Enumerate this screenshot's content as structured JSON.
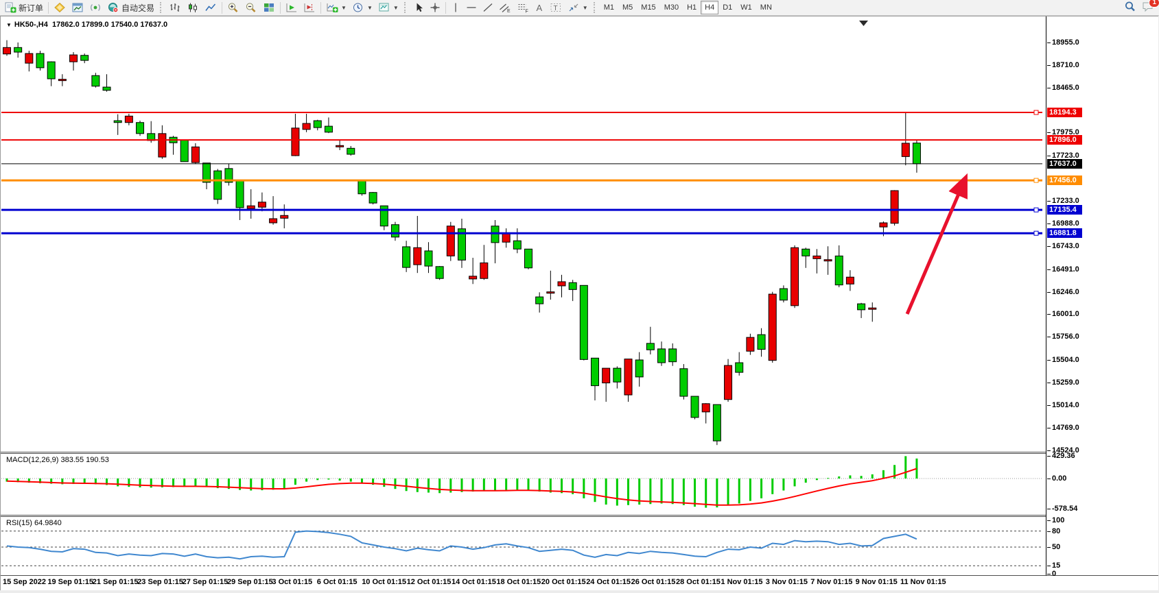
{
  "toolbar": {
    "new_order_label": "新订单",
    "autotrading_label": "自动交易",
    "timeframes": [
      "M1",
      "M5",
      "M15",
      "M30",
      "H1",
      "H4",
      "D1",
      "W1",
      "MN"
    ],
    "active_timeframe": "H4",
    "chat_badge": "1"
  },
  "chart_data": {
    "type": "candlestick",
    "symbol": "HK50-",
    "timeframe": "H4",
    "info_bar": {
      "symbol_period": "HK50-,H4",
      "ohlc": "17862.0 17899.0 17540.0 17637.0"
    },
    "colors": {
      "up": "#e80000",
      "down": "#00cc00",
      "wick": "#000000",
      "resistance": "#ee0000",
      "support": "#0000d0",
      "pivot": "#ff8c00",
      "current": "#000000",
      "arrow": "#e8112d",
      "macd_hist": "#00cc00",
      "macd_signal": "#ff0000",
      "rsi_line": "#3f87cf"
    },
    "price_axis": {
      "ref": 19409,
      "scale": 7.45,
      "ticks": [
        18955.0,
        18710.0,
        18465.0,
        17975.0,
        17723.0,
        17233.0,
        16988.0,
        16743.0,
        16491.0,
        16246.0,
        16001.0,
        15756.0,
        15504.0,
        15259.0,
        15014.0,
        14769.0,
        14524.0
      ]
    },
    "hlines": [
      {
        "price": 18194.3,
        "label": "18194.3",
        "color": "#ee0000",
        "width": 2,
        "handle": true
      },
      {
        "price": 17896.0,
        "label": "17896.0",
        "color": "#ee0000",
        "width": 2,
        "handle": false
      },
      {
        "price": 17637.0,
        "label": "17637.0",
        "color": "#000000",
        "width": 1,
        "handle": false
      },
      {
        "price": 17456.0,
        "label": "17456.0",
        "color": "#ff8c00",
        "width": 3,
        "handle": true
      },
      {
        "price": 17135.4,
        "label": "17135.4",
        "color": "#0000d0",
        "width": 3,
        "handle": true
      },
      {
        "price": 16881.8,
        "label": "16881.8",
        "color": "#0000d0",
        "width": 3,
        "handle": true
      }
    ],
    "candles": [
      [
        18830,
        18980,
        18810,
        18900,
        "u"
      ],
      [
        18900,
        18955,
        18790,
        18850,
        "d"
      ],
      [
        18730,
        18865,
        18640,
        18835,
        "u"
      ],
      [
        18835,
        18865,
        18650,
        18680,
        "d"
      ],
      [
        18745,
        18750,
        18480,
        18560,
        "d"
      ],
      [
        18545,
        18610,
        18480,
        18555,
        "u"
      ],
      [
        18745,
        18850,
        18650,
        18820,
        "u"
      ],
      [
        18815,
        18835,
        18730,
        18760,
        "d"
      ],
      [
        18595,
        18625,
        18465,
        18480,
        "d"
      ],
      [
        18470,
        18610,
        18420,
        18435,
        "d"
      ],
      [
        18105,
        18175,
        17950,
        18085,
        "d"
      ],
      [
        18085,
        18180,
        18055,
        18155,
        "u"
      ],
      [
        18085,
        18105,
        17940,
        17965,
        "d"
      ],
      [
        17965,
        18100,
        17865,
        17890,
        "d"
      ],
      [
        17710,
        18055,
        17690,
        17965,
        "u"
      ],
      [
        17925,
        17940,
        17735,
        17865,
        "d"
      ],
      [
        17895,
        17900,
        17660,
        17660,
        "d"
      ],
      [
        17650,
        17860,
        17635,
        17820,
        "u"
      ],
      [
        17645,
        17645,
        17360,
        17435,
        "d"
      ],
      [
        17560,
        17580,
        17200,
        17250,
        "d"
      ],
      [
        17585,
        17635,
        17400,
        17435,
        "d"
      ],
      [
        17455,
        17460,
        17025,
        17160,
        "d"
      ],
      [
        17150,
        17360,
        17040,
        17180,
        "u"
      ],
      [
        17165,
        17325,
        17120,
        17220,
        "u"
      ],
      [
        16995,
        17285,
        16975,
        17040,
        "u"
      ],
      [
        17045,
        17195,
        16935,
        17075,
        "u"
      ],
      [
        17725,
        18180,
        17720,
        18025,
        "u"
      ],
      [
        18010,
        18180,
        17980,
        18075,
        "u"
      ],
      [
        18105,
        18115,
        18000,
        18030,
        "d"
      ],
      [
        18045,
        18140,
        17970,
        17980,
        "d"
      ],
      [
        17825,
        17895,
        17785,
        17835,
        "u"
      ],
      [
        17805,
        17830,
        17725,
        17740,
        "d"
      ],
      [
        17455,
        17460,
        17290,
        17310,
        "d"
      ],
      [
        17325,
        17330,
        17195,
        17210,
        "d"
      ],
      [
        17180,
        17180,
        16915,
        16960,
        "d"
      ],
      [
        16975,
        17005,
        16800,
        16840,
        "d"
      ],
      [
        16735,
        16800,
        16460,
        16510,
        "d"
      ],
      [
        16540,
        17070,
        16450,
        16725,
        "u"
      ],
      [
        16690,
        16785,
        16450,
        16525,
        "d"
      ],
      [
        16520,
        16525,
        16375,
        16390,
        "d"
      ],
      [
        16635,
        17005,
        16580,
        16960,
        "u"
      ],
      [
        16930,
        17040,
        16505,
        16590,
        "d"
      ],
      [
        16385,
        16615,
        16330,
        16415,
        "u"
      ],
      [
        16390,
        16755,
        16375,
        16560,
        "u"
      ],
      [
        16960,
        17025,
        16555,
        16780,
        "d"
      ],
      [
        16785,
        16935,
        16725,
        16885,
        "u"
      ],
      [
        16800,
        16935,
        16665,
        16710,
        "d"
      ],
      [
        16710,
        16710,
        16490,
        16505,
        "d"
      ],
      [
        16190,
        16240,
        16020,
        16115,
        "d"
      ],
      [
        16240,
        16475,
        16160,
        16245,
        "u"
      ],
      [
        16310,
        16430,
        16185,
        16355,
        "u"
      ],
      [
        16345,
        16375,
        16145,
        16270,
        "d"
      ],
      [
        16315,
        16315,
        15500,
        15510,
        "d"
      ],
      [
        15525,
        15525,
        15065,
        15225,
        "d"
      ],
      [
        15255,
        15415,
        15050,
        15415,
        "u"
      ],
      [
        15415,
        15435,
        15195,
        15265,
        "d"
      ],
      [
        15125,
        15515,
        15050,
        15515,
        "u"
      ],
      [
        15505,
        15590,
        15215,
        15320,
        "d"
      ],
      [
        15685,
        15865,
        15565,
        15615,
        "d"
      ],
      [
        15625,
        15705,
        15440,
        15475,
        "d"
      ],
      [
        15625,
        15685,
        15440,
        15485,
        "d"
      ],
      [
        15410,
        15460,
        15075,
        15110,
        "d"
      ],
      [
        15110,
        15110,
        14860,
        14880,
        "d"
      ],
      [
        14940,
        15035,
        14815,
        15030,
        "u"
      ],
      [
        15020,
        15020,
        14580,
        14625,
        "d"
      ],
      [
        15075,
        15515,
        15050,
        15445,
        "u"
      ],
      [
        15475,
        15590,
        15335,
        15370,
        "d"
      ],
      [
        15600,
        15790,
        15560,
        15750,
        "u"
      ],
      [
        15780,
        15850,
        15540,
        15620,
        "d"
      ],
      [
        15500,
        16245,
        15475,
        16220,
        "u"
      ],
      [
        16280,
        16315,
        16130,
        16155,
        "d"
      ],
      [
        16095,
        16750,
        16070,
        16725,
        "u"
      ],
      [
        16710,
        16725,
        16505,
        16635,
        "d"
      ],
      [
        16605,
        16710,
        16445,
        16635,
        "u"
      ],
      [
        16585,
        16740,
        16430,
        16595,
        "u"
      ],
      [
        16635,
        16750,
        16295,
        16320,
        "d"
      ],
      [
        16330,
        16480,
        16255,
        16405,
        "u"
      ],
      [
        16115,
        16125,
        15960,
        16050,
        "d"
      ],
      [
        16055,
        16130,
        15920,
        16070,
        "u"
      ],
      [
        16950,
        17010,
        16850,
        16995,
        "u"
      ],
      [
        16990,
        17350,
        16965,
        17345,
        "u"
      ],
      [
        17715,
        18194,
        17620,
        17860,
        "u"
      ],
      [
        17862,
        17899,
        17540,
        17637,
        "d"
      ]
    ],
    "x_labels": [
      "15 Sep 2022",
      "19 Sep 01:15",
      "21 Sep 01:15",
      "23 Sep 01:15",
      "27 Sep 01:15",
      "29 Sep 01:15",
      "3 Oct 01:15",
      "6 Oct 01:15",
      "10 Oct 01:15",
      "12 Oct 01:15",
      "14 Oct 01:15",
      "18 Oct 01:15",
      "20 Oct 01:15",
      "24 Oct 01:15",
      "26 Oct 01:15",
      "28 Oct 01:15",
      "1 Nov 01:15",
      "3 Nov 01:15",
      "7 Nov 01:15",
      "9 Nov 01:15",
      "11 Nov 01:15"
    ],
    "macd": {
      "label": "MACD(12,26,9)",
      "values_text": "383.55 190.53",
      "axis_ticks": [
        429.36,
        0.0,
        -578.54
      ],
      "hist": [
        -60,
        -70,
        -80,
        -90,
        -100,
        -110,
        -105,
        -95,
        -110,
        -125,
        -150,
        -160,
        -170,
        -175,
        -170,
        -165,
        -160,
        -150,
        -165,
        -185,
        -200,
        -220,
        -230,
        -225,
        -215,
        -200,
        -120,
        -60,
        -30,
        -20,
        -40,
        -60,
        -90,
        -120,
        -160,
        -200,
        -240,
        -260,
        -270,
        -280,
        -270,
        -260,
        -250,
        -240,
        -230,
        -220,
        -215,
        -220,
        -250,
        -270,
        -280,
        -300,
        -380,
        -450,
        -500,
        -520,
        -510,
        -500,
        -490,
        -480,
        -490,
        -510,
        -540,
        -560,
        -555,
        -520,
        -480,
        -430,
        -380,
        -300,
        -230,
        -150,
        -80,
        -30,
        10,
        40,
        60,
        50,
        80,
        160,
        260,
        429.36,
        383.55
      ],
      "signal": [
        -50,
        -55,
        -62,
        -70,
        -78,
        -85,
        -90,
        -92,
        -95,
        -100,
        -108,
        -118,
        -128,
        -136,
        -142,
        -147,
        -150,
        -150,
        -152,
        -158,
        -166,
        -176,
        -186,
        -193,
        -197,
        -198,
        -183,
        -159,
        -134,
        -112,
        -98,
        -90,
        -90,
        -96,
        -109,
        -127,
        -149,
        -171,
        -191,
        -209,
        -221,
        -229,
        -233,
        -234,
        -233,
        -231,
        -228,
        -226,
        -231,
        -239,
        -247,
        -258,
        -282,
        -316,
        -353,
        -386,
        -411,
        -429,
        -441,
        -449,
        -457,
        -468,
        -482,
        -498,
        -509,
        -511,
        -505,
        -490,
        -468,
        -434,
        -393,
        -345,
        -292,
        -240,
        -190,
        -144,
        -103,
        -72,
        -42,
        2,
        50,
        120,
        190.53
      ]
    },
    "rsi": {
      "label": "RSI(15)",
      "value_text": "64.9840",
      "axis_ticks": [
        100,
        80,
        50,
        15,
        0
      ],
      "levels": [
        80,
        50,
        15
      ],
      "values": [
        52,
        50,
        49,
        46,
        42,
        41,
        47,
        46,
        40,
        39,
        34,
        37,
        35,
        34,
        38,
        37,
        33,
        37,
        32,
        30,
        31,
        28,
        32,
        33,
        31,
        32,
        78,
        80,
        79,
        77,
        74,
        70,
        58,
        54,
        50,
        47,
        43,
        48,
        45,
        43,
        52,
        50,
        46,
        49,
        54,
        56,
        52,
        49,
        42,
        44,
        46,
        44,
        35,
        31,
        36,
        34,
        40,
        38,
        42,
        40,
        39,
        36,
        33,
        32,
        40,
        46,
        45,
        50,
        48,
        57,
        55,
        62,
        60,
        61,
        60,
        55,
        57,
        52,
        53,
        66,
        70,
        74,
        64.98
      ]
    },
    "annotations": {
      "arrow": {
        "from": [
          1320,
          431
        ],
        "to": [
          1404,
          235
        ],
        "color": "#e8112d",
        "width": 5
      }
    }
  }
}
